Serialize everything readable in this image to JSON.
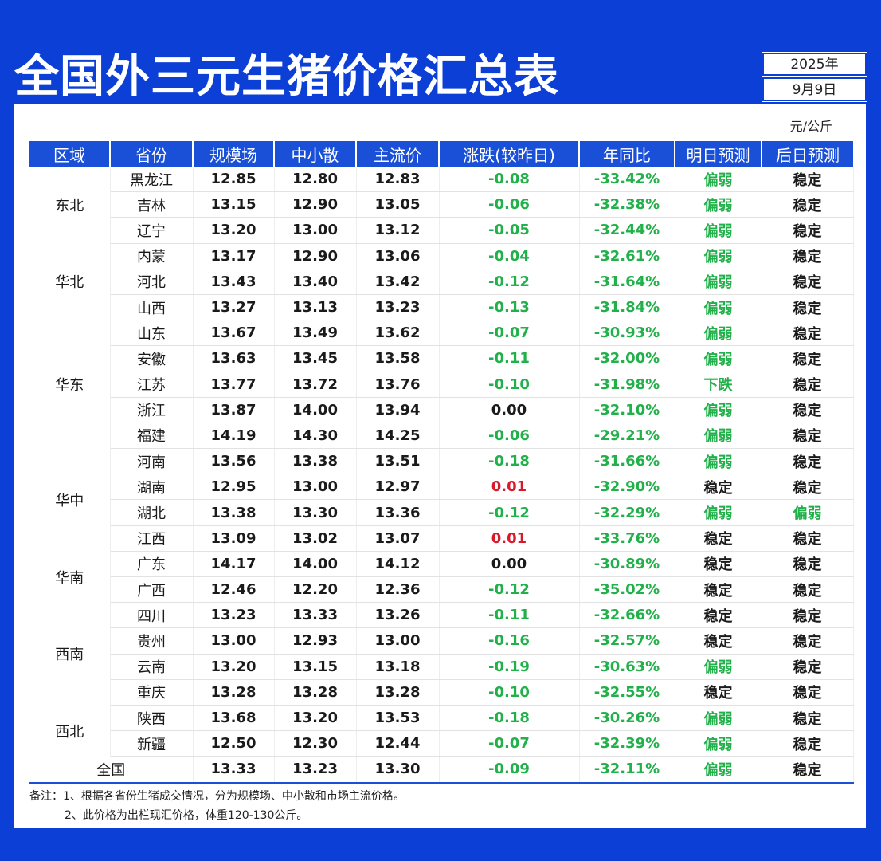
{
  "title": "全国外三元生猪价格汇总表",
  "date": {
    "year": "2025年",
    "day": "9月9日"
  },
  "unit": "元/公斤",
  "headers": [
    "区域",
    "省份",
    "规模场",
    "中小散",
    "主流价",
    "涨跌(较昨日)",
    "年同比",
    "明日预测",
    "后日预测"
  ],
  "colors": {
    "up": "#d7192b",
    "down": "#22b04b",
    "header": "#1a4fd8",
    "background": "#0b3fd6"
  },
  "regions": [
    {
      "name": "东北",
      "rows": [
        {
          "province": "黑龙江",
          "large": "12.85",
          "small": "12.80",
          "main": "12.83",
          "change": "-0.08",
          "yoy": "-33.42%",
          "tomorrow": "偏弱",
          "dayafter": "稳定"
        },
        {
          "province": "吉林",
          "large": "13.15",
          "small": "12.90",
          "main": "13.05",
          "change": "-0.06",
          "yoy": "-32.38%",
          "tomorrow": "偏弱",
          "dayafter": "稳定"
        },
        {
          "province": "辽宁",
          "large": "13.20",
          "small": "13.00",
          "main": "13.12",
          "change": "-0.05",
          "yoy": "-32.44%",
          "tomorrow": "偏弱",
          "dayafter": "稳定"
        }
      ]
    },
    {
      "name": "华北",
      "rows": [
        {
          "province": "内蒙",
          "large": "13.17",
          "small": "12.90",
          "main": "13.06",
          "change": "-0.04",
          "yoy": "-32.61%",
          "tomorrow": "偏弱",
          "dayafter": "稳定"
        },
        {
          "province": "河北",
          "large": "13.43",
          "small": "13.40",
          "main": "13.42",
          "change": "-0.12",
          "yoy": "-31.64%",
          "tomorrow": "偏弱",
          "dayafter": "稳定"
        },
        {
          "province": "山西",
          "large": "13.27",
          "small": "13.13",
          "main": "13.23",
          "change": "-0.13",
          "yoy": "-31.84%",
          "tomorrow": "偏弱",
          "dayafter": "稳定"
        }
      ]
    },
    {
      "name": "华东",
      "rows": [
        {
          "province": "山东",
          "large": "13.67",
          "small": "13.49",
          "main": "13.62",
          "change": "-0.07",
          "yoy": "-30.93%",
          "tomorrow": "偏弱",
          "dayafter": "稳定"
        },
        {
          "province": "安徽",
          "large": "13.63",
          "small": "13.45",
          "main": "13.58",
          "change": "-0.11",
          "yoy": "-32.00%",
          "tomorrow": "偏弱",
          "dayafter": "稳定"
        },
        {
          "province": "江苏",
          "large": "13.77",
          "small": "13.72",
          "main": "13.76",
          "change": "-0.10",
          "yoy": "-31.98%",
          "tomorrow": "下跌",
          "dayafter": "稳定"
        },
        {
          "province": "浙江",
          "large": "13.87",
          "small": "14.00",
          "main": "13.94",
          "change": "0.00",
          "yoy": "-32.10%",
          "tomorrow": "偏弱",
          "dayafter": "稳定"
        },
        {
          "province": "福建",
          "large": "14.19",
          "small": "14.30",
          "main": "14.25",
          "change": "-0.06",
          "yoy": "-29.21%",
          "tomorrow": "偏弱",
          "dayafter": "稳定"
        }
      ]
    },
    {
      "name": "华中",
      "rows": [
        {
          "province": "河南",
          "large": "13.56",
          "small": "13.38",
          "main": "13.51",
          "change": "-0.18",
          "yoy": "-31.66%",
          "tomorrow": "偏弱",
          "dayafter": "稳定"
        },
        {
          "province": "湖南",
          "large": "12.95",
          "small": "13.00",
          "main": "12.97",
          "change": "0.01",
          "yoy": "-32.90%",
          "tomorrow": "稳定",
          "dayafter": "稳定"
        },
        {
          "province": "湖北",
          "large": "13.38",
          "small": "13.30",
          "main": "13.36",
          "change": "-0.12",
          "yoy": "-32.29%",
          "tomorrow": "偏弱",
          "dayafter": "偏弱"
        },
        {
          "province": "江西",
          "large": "13.09",
          "small": "13.02",
          "main": "13.07",
          "change": "0.01",
          "yoy": "-33.76%",
          "tomorrow": "稳定",
          "dayafter": "稳定"
        }
      ]
    },
    {
      "name": "华南",
      "rows": [
        {
          "province": "广东",
          "large": "14.17",
          "small": "14.00",
          "main": "14.12",
          "change": "0.00",
          "yoy": "-30.89%",
          "tomorrow": "稳定",
          "dayafter": "稳定"
        },
        {
          "province": "广西",
          "large": "12.46",
          "small": "12.20",
          "main": "12.36",
          "change": "-0.12",
          "yoy": "-35.02%",
          "tomorrow": "稳定",
          "dayafter": "稳定"
        }
      ]
    },
    {
      "name": "西南",
      "rows": [
        {
          "province": "四川",
          "large": "13.23",
          "small": "13.33",
          "main": "13.26",
          "change": "-0.11",
          "yoy": "-32.66%",
          "tomorrow": "稳定",
          "dayafter": "稳定"
        },
        {
          "province": "贵州",
          "large": "13.00",
          "small": "12.93",
          "main": "13.00",
          "change": "-0.16",
          "yoy": "-32.57%",
          "tomorrow": "稳定",
          "dayafter": "稳定"
        },
        {
          "province": "云南",
          "large": "13.20",
          "small": "13.15",
          "main": "13.18",
          "change": "-0.19",
          "yoy": "-30.63%",
          "tomorrow": "偏弱",
          "dayafter": "稳定"
        },
        {
          "province": "重庆",
          "large": "13.28",
          "small": "13.28",
          "main": "13.28",
          "change": "-0.10",
          "yoy": "-32.55%",
          "tomorrow": "稳定",
          "dayafter": "稳定"
        }
      ]
    },
    {
      "name": "西北",
      "rows": [
        {
          "province": "陕西",
          "large": "13.68",
          "small": "13.20",
          "main": "13.53",
          "change": "-0.18",
          "yoy": "-30.26%",
          "tomorrow": "偏弱",
          "dayafter": "稳定"
        },
        {
          "province": "新疆",
          "large": "12.50",
          "small": "12.30",
          "main": "12.44",
          "change": "-0.07",
          "yoy": "-32.39%",
          "tomorrow": "偏弱",
          "dayafter": "稳定"
        }
      ]
    }
  ],
  "national": {
    "label": "全国",
    "large": "13.33",
    "small": "13.23",
    "main": "13.30",
    "change": "-0.09",
    "yoy": "-32.11%",
    "tomorrow": "偏弱",
    "dayafter": "稳定"
  },
  "notes": [
    "备注：1、根据各省份生猪成交情况，分为规模场、中小散和市场主流价格。",
    "2、此价格为出栏现汇价格，体重120-130公斤。"
  ]
}
